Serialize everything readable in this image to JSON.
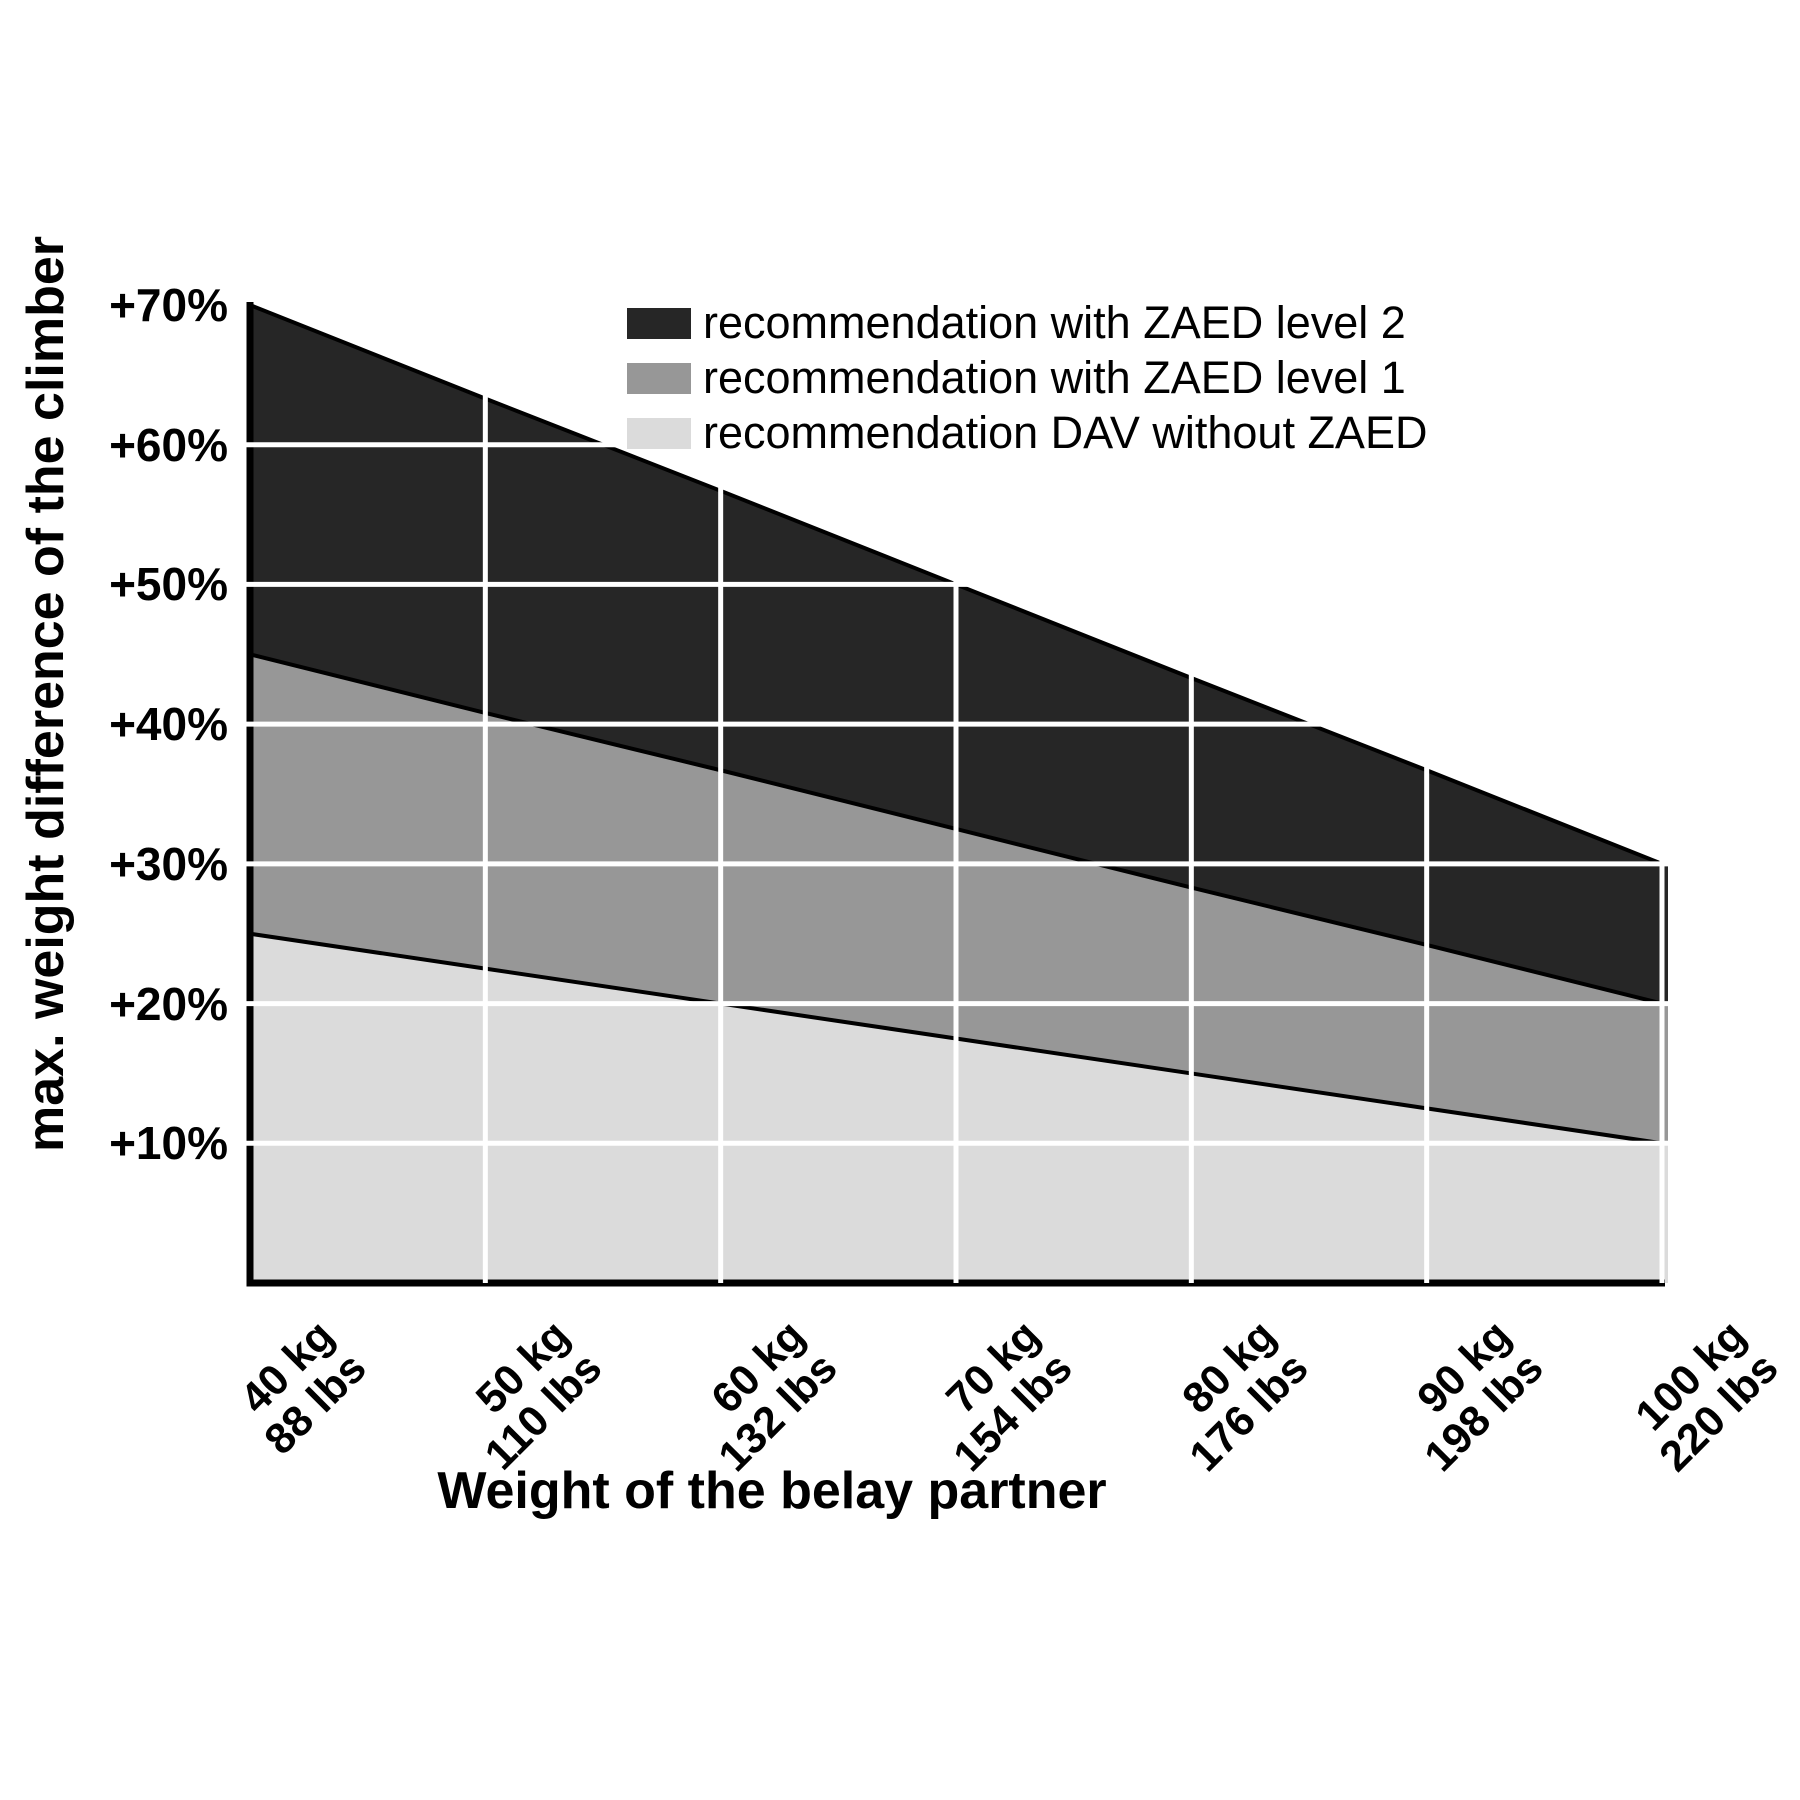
{
  "y_axis": {
    "title": "max. weight difference of the climber",
    "tick_labels": [
      "+70%",
      "+60%",
      "+50%",
      "+40%",
      "+30%",
      "+20%",
      "+10%"
    ],
    "tick_values": [
      70,
      60,
      50,
      40,
      30,
      20,
      10
    ]
  },
  "x_axis": {
    "title": "Weight of the belay partner",
    "ticks": [
      {
        "value": 40,
        "kg": "40 kg",
        "lbs": "88 lbs"
      },
      {
        "value": 50,
        "kg": "50 kg",
        "lbs": "110 lbs"
      },
      {
        "value": 60,
        "kg": "60 kg",
        "lbs": "132 lbs"
      },
      {
        "value": 70,
        "kg": "70 kg",
        "lbs": "154 lbs"
      },
      {
        "value": 80,
        "kg": "80 kg",
        "lbs": "176 lbs"
      },
      {
        "value": 90,
        "kg": "90 kg",
        "lbs": "198 lbs"
      },
      {
        "value": 100,
        "kg": "100 kg",
        "lbs": "220 lbs"
      }
    ]
  },
  "chart_data": {
    "type": "area",
    "x": [
      40,
      50,
      60,
      70,
      80,
      90,
      100
    ],
    "x_unit": "kg",
    "xlim": [
      40,
      100
    ],
    "ylim": [
      0,
      70
    ],
    "y_unit": "%",
    "series": [
      {
        "name": "recommendation with ZAED level 2",
        "color": "#262626",
        "values": [
          70,
          63.3,
          56.7,
          50,
          43.3,
          36.7,
          30
        ]
      },
      {
        "name": "recommendation with ZAED level 1",
        "color": "#979797",
        "values": [
          45,
          40.8,
          36.7,
          32.5,
          28.3,
          24.2,
          20
        ]
      },
      {
        "name": "recommendation DAV without ZAED",
        "color": "#dbdbdb",
        "values": [
          25,
          22.5,
          20,
          17.5,
          15,
          12.5,
          10
        ]
      }
    ],
    "gridlines_y": [
      10,
      20,
      30,
      40,
      50,
      60
    ],
    "gridlines_x": [
      50,
      60,
      70,
      80,
      90,
      100
    ],
    "grid": true,
    "gridline_color": "#ffffff",
    "boundary_line_color": "#000000",
    "axis_color": "#000000",
    "legend_position": "top-right-inside"
  }
}
